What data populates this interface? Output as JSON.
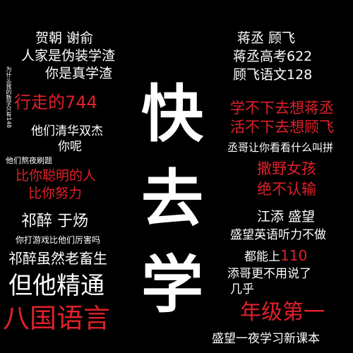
{
  "colors": {
    "background": "#000000",
    "white": "#ffffff",
    "red": "#e0202a"
  },
  "center": {
    "c1": "快",
    "c2": "去",
    "c3": "学"
  },
  "left": {
    "l1": "贺朝 谢俞",
    "l2": "人家是伪装学渣",
    "l3": "你是真学渣",
    "vertical": "为什么我的数学只有148",
    "l4": "行走的744",
    "l5": "他们清华双杰",
    "l6": "你呢",
    "l7": "他们熬夜刷题",
    "l8": "比你聪明的人",
    "l9": "比你努力",
    "l10": "祁醉 于炀",
    "l11": "你打游戏比他们厉害吗",
    "l12": "祁醉虽然老畜生",
    "l13": "但他精通",
    "l14": "八国语言"
  },
  "right": {
    "r1": "蒋丞 顾飞",
    "r2": "蒋丞高考622",
    "r3": "顾飞语文128",
    "r4": "学不下去想蒋丞",
    "r5": "活不下去想顾飞",
    "r6": "丞哥让你看看什么叫拼",
    "r7": "撒野女孩",
    "r8": "绝不认输",
    "r9": "江添 盛望",
    "r10": "盛望英语听力不做",
    "r11a": "都能上",
    "r11b": "110",
    "r12": "添哥更不用说了",
    "r13": "几乎",
    "r14": "年级第一",
    "r15": "盛望一夜学习新课本"
  }
}
